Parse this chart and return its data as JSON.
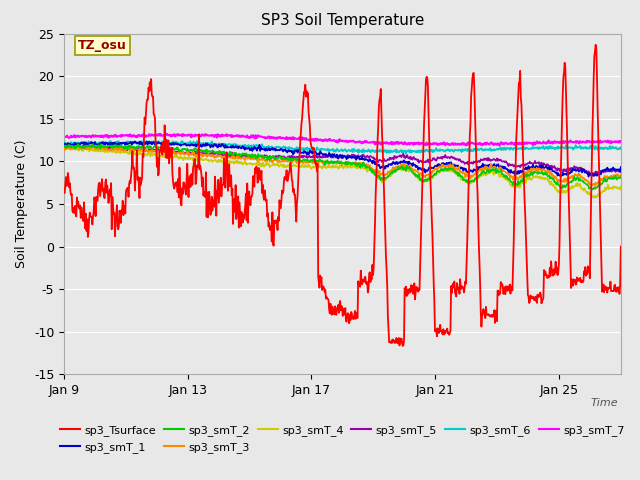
{
  "title": "SP3 Soil Temperature",
  "ylabel": "Soil Temperature (C)",
  "time_label": "Time",
  "annotation_text": "TZ_osu",
  "annotation_box_color": "#ffffcc",
  "annotation_box_edge": "#999900",
  "fig_bg_color": "#e8e8e8",
  "plot_bg_color": "#e8e8e8",
  "grid_color": "#ffffff",
  "series_colors": {
    "sp3_Tsurface": "#ff0000",
    "sp3_smT_1": "#0000cc",
    "sp3_smT_2": "#00cc00",
    "sp3_smT_3": "#ff8800",
    "sp3_smT_4": "#cccc00",
    "sp3_smT_5": "#9900aa",
    "sp3_smT_6": "#00cccc",
    "sp3_smT_7": "#ff00ff"
  },
  "tick_dates": [
    "Jan 9",
    "Jan 13",
    "Jan 17",
    "Jan 21",
    "Jan 25"
  ],
  "tick_positions": [
    0,
    4,
    8,
    12,
    16
  ],
  "yticks": [
    -15,
    -10,
    -5,
    0,
    5,
    10,
    15,
    20,
    25
  ],
  "ylim": [
    -15,
    25
  ],
  "n_days": 18
}
